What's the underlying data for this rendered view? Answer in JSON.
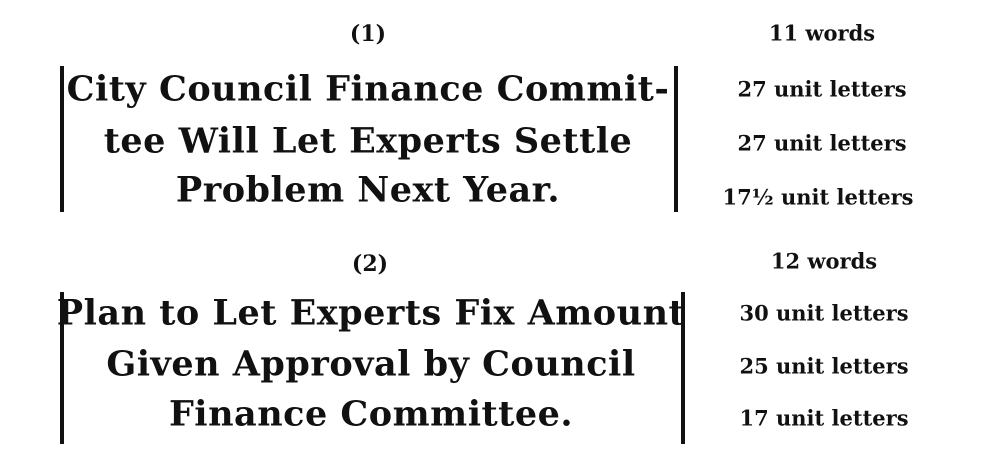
{
  "examples": [
    {
      "label": "(1)",
      "lines": [
        "City Council Finance Commit-",
        "tee Will Let Experts Settle",
        "Problem Next Year."
      ],
      "word_count": "11 words",
      "line_counts": [
        "27 unit letters",
        "27 unit letters",
        "17½ unit letters"
      ]
    },
    {
      "label": "(2)",
      "lines": [
        "Plan to Let Experts Fix Amount",
        "Given Approval by Council",
        "Finance Committee."
      ],
      "word_count": "12 words",
      "line_counts": [
        "30 unit letters",
        "25 unit letters",
        "17 unit letters"
      ]
    }
  ]
}
